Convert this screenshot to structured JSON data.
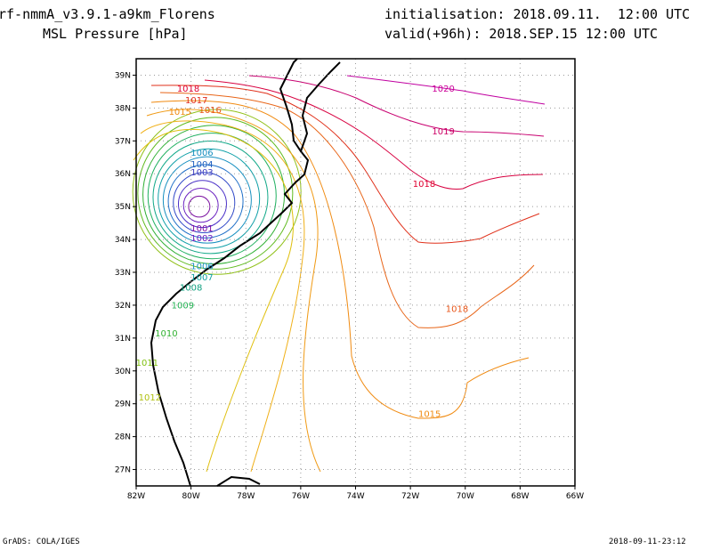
{
  "header": {
    "model_line": "rf-nmmA_v3.9.1-a9km_Florens",
    "field_line": "MSL Pressure [hPa]",
    "init_line": "initialisation: 2018.09.11.  12:00 UTC",
    "valid_line": "valid(+96h): 2018.SEP.15 12:00 UTC"
  },
  "footer": {
    "credit": "GrADS: COLA/IGES",
    "timestamp": "2018-09-11-23:12"
  },
  "colors": {
    "frame": "#000000",
    "grid": "#9a9a9a",
    "coast": "#000000"
  },
  "chart_data": {
    "type": "contour",
    "field": "MSL Pressure [hPa]",
    "lon_range": [
      -82,
      -66
    ],
    "lat_range": [
      26.5,
      39.5
    ],
    "x_ticks": [
      "82W",
      "80W",
      "78W",
      "76W",
      "74W",
      "72W",
      "70W",
      "68W",
      "66W"
    ],
    "y_ticks": [
      "27N",
      "28N",
      "29N",
      "30N",
      "31N",
      "32N",
      "33N",
      "34N",
      "35N",
      "36N",
      "37N",
      "38N",
      "39N"
    ],
    "grid": "dotted",
    "cyclone_center": {
      "lon": -79.7,
      "lat": 35.0
    },
    "contour_labels": [
      {
        "text": "1020",
        "lon": -70.8,
        "lat": 38.5,
        "color": "#cc0099"
      },
      {
        "text": "1019",
        "lon": -70.8,
        "lat": 37.2,
        "color": "#cc0066"
      },
      {
        "text": "1018",
        "lon": -80.1,
        "lat": 38.5,
        "color": "#e00030"
      },
      {
        "text": "1017",
        "lon": -79.8,
        "lat": 38.15,
        "color": "#e02a1a"
      },
      {
        "text": "1016",
        "lon": -79.3,
        "lat": 37.85,
        "color": "#e85518"
      },
      {
        "text": "1015",
        "lon": -80.4,
        "lat": 37.8,
        "color": "#f08a10"
      },
      {
        "text": "1018",
        "lon": -71.5,
        "lat": 35.6,
        "color": "#e00030"
      },
      {
        "text": "1018",
        "lon": -70.3,
        "lat": 31.8,
        "color": "#e85518"
      },
      {
        "text": "1015",
        "lon": -71.3,
        "lat": 28.6,
        "color": "#f08a10"
      },
      {
        "text": "1006",
        "lon": -79.6,
        "lat": 36.55,
        "color": "#1890c0"
      },
      {
        "text": "1004",
        "lon": -79.6,
        "lat": 36.2,
        "color": "#2060c0"
      },
      {
        "text": "1003",
        "lon": -79.6,
        "lat": 35.95,
        "color": "#4040c0"
      },
      {
        "text": "1001",
        "lon": -79.6,
        "lat": 34.25,
        "color": "#8010a0"
      },
      {
        "text": "1002",
        "lon": -79.6,
        "lat": 33.95,
        "color": "#7020c0"
      },
      {
        "text": "1006",
        "lon": -79.6,
        "lat": 33.1,
        "color": "#1890c0"
      },
      {
        "text": "1007",
        "lon": -79.6,
        "lat": 32.75,
        "color": "#10a0a0"
      },
      {
        "text": "1008",
        "lon": -80.0,
        "lat": 32.45,
        "color": "#10a080"
      },
      {
        "text": "1009",
        "lon": -80.3,
        "lat": 31.9,
        "color": "#20b050"
      },
      {
        "text": "1010",
        "lon": -80.9,
        "lat": 31.05,
        "color": "#30b030"
      },
      {
        "text": "1011",
        "lon": -81.6,
        "lat": 30.15,
        "color": "#80c010"
      },
      {
        "text": "1012",
        "lon": -81.5,
        "lat": 29.1,
        "color": "#b0c010"
      }
    ]
  }
}
